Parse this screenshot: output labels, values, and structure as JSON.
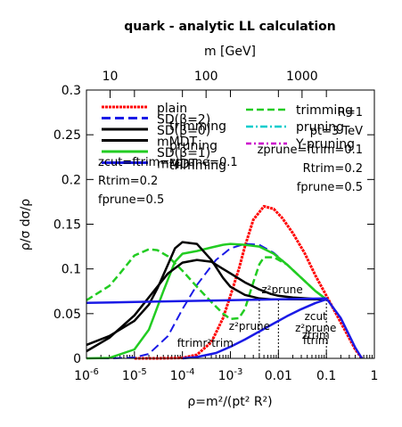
{
  "chart_data": {
    "type": "line",
    "title": "quark - analytic LL calculation",
    "top_axis_label": "m [GeV]",
    "top_ticks": [
      "10",
      "100",
      "1000"
    ],
    "top_tick_rho": [
      3.11e-06,
      0.000311,
      0.0311
    ],
    "xlabel": "ρ=m²/(pt² R²)",
    "ylabel": "ρ/σ dσ/ρ",
    "x_scale": "log",
    "xlim": [
      1e-06,
      1
    ],
    "ylim": [
      0,
      0.3
    ],
    "x_ticks": [
      "10-6",
      "10-5",
      "10-4",
      "10-3",
      "0.01",
      "0.1",
      "1"
    ],
    "y_ticks": [
      "0",
      "0.05",
      "0.1",
      "0.15",
      "0.2",
      "0.25",
      "0.3"
    ],
    "legend_position": "top",
    "legend_left": [
      {
        "label": "plain",
        "color": "#ff0000",
        "dash": "3,1"
      },
      {
        "label": "SD(β=2)",
        "color": "#1a1ae6",
        "dash": "10,5"
      },
      {
        "label": "SD(β=0)",
        "color": "#000000",
        "dash": ""
      },
      {
        "label": "mMDT",
        "color": "#000000",
        "dash": ""
      },
      {
        "label": "SD(β=1)",
        "color": "#22cc22",
        "dash": ""
      },
      {
        "label": "mMDT",
        "color": "#1a1ae6",
        "dash": ""
      }
    ],
    "legend_left_extra": [
      "trimming",
      "pruning",
      "trimming"
    ],
    "legend_right": [
      {
        "label": "trimming",
        "color": "#22cc22",
        "dash": "8,4"
      },
      {
        "label": "pruning",
        "color": "#00cccc",
        "dash": "8,3,2,3"
      },
      {
        "label": "Y-pruning",
        "color": "#cc00cc",
        "dash": "6,3,2,3"
      }
    ],
    "params_left": [
      "zcut=ftrim=zprune=0.1",
      "Rtrim=0.2",
      "fprune=0.5"
    ],
    "params_right": [
      "R=1",
      "pt=3 TeV",
      "zprune=ftrim=0.1",
      "Rtrim=0.2",
      "fprune=0.5"
    ],
    "series": [
      {
        "name": "plain",
        "color": "#ff0000",
        "dash": "3,1",
        "width": 3,
        "x": [
          1e-05,
          3e-05,
          0.0001,
          0.0002,
          0.0004,
          0.0007,
          0.001,
          0.0015,
          0.002,
          0.003,
          0.005,
          0.008,
          0.012,
          0.02,
          0.035,
          0.06,
          0.1,
          0.2,
          0.4,
          0.55
        ],
        "y": [
          0,
          0,
          0.0005,
          0.004,
          0.018,
          0.045,
          0.07,
          0.1,
          0.125,
          0.155,
          0.17,
          0.167,
          0.157,
          0.14,
          0.118,
          0.092,
          0.07,
          0.04,
          0.01,
          0
        ]
      },
      {
        "name": "SD(β=2)",
        "color": "#1a1ae6",
        "dash": "10,5",
        "width": 2,
        "x": [
          1e-06,
          3e-06,
          1e-05,
          2e-05,
          5e-05,
          0.0001,
          0.0002,
          0.0005,
          0.001,
          0.002,
          0.004,
          0.008,
          0.015,
          0.03,
          0.06,
          0.1
        ],
        "y": [
          0,
          0,
          0.001,
          0.005,
          0.025,
          0.055,
          0.082,
          0.11,
          0.123,
          0.128,
          0.127,
          0.118,
          0.105,
          0.09,
          0.075,
          0.066
        ]
      },
      {
        "name": "SD(β=1)",
        "color": "#22cc22",
        "dash": "",
        "width": 2.5,
        "x": [
          1e-06,
          3e-06,
          1e-05,
          2e-05,
          4e-05,
          7e-05,
          0.0001,
          0.0002,
          0.0004,
          0.0007,
          0.001,
          0.002,
          0.004,
          0.008,
          0.015,
          0.03,
          0.06,
          0.1
        ],
        "y": [
          0,
          0.0005,
          0.01,
          0.032,
          0.075,
          0.108,
          0.117,
          0.12,
          0.124,
          0.127,
          0.128,
          0.127,
          0.125,
          0.117,
          0.105,
          0.09,
          0.075,
          0.066
        ]
      },
      {
        "name": "trimming",
        "color": "#22cc22",
        "dash": "8,4",
        "width": 2.5,
        "x": [
          1e-06,
          3e-06,
          5e-06,
          1e-05,
          2e-05,
          3e-05,
          5e-05,
          0.0001,
          0.0002,
          0.0004,
          0.0007,
          0.001,
          0.0015,
          0.002,
          0.003,
          0.004,
          0.005,
          0.008,
          0.015,
          0.03,
          0.06,
          0.1
        ],
        "y": [
          0.065,
          0.081,
          0.095,
          0.115,
          0.122,
          0.121,
          0.114,
          0.098,
          0.08,
          0.063,
          0.05,
          0.044,
          0.045,
          0.055,
          0.085,
          0.105,
          0.113,
          0.113,
          0.105,
          0.09,
          0.075,
          0.066
        ]
      },
      {
        "name": "SD(β=0) / mMDT",
        "color": "#000000",
        "dash": "",
        "width": 2.5,
        "x": [
          1e-06,
          3e-06,
          1e-05,
          3e-05,
          5e-05,
          0.0001,
          0.0002,
          0.0004,
          0.0007,
          0.001,
          0.002,
          0.004,
          0.007,
          0.01,
          0.02,
          0.04,
          0.07,
          0.1
        ],
        "y": [
          0.008,
          0.023,
          0.048,
          0.08,
          0.095,
          0.107,
          0.11,
          0.108,
          0.1,
          0.095,
          0.085,
          0.077,
          0.072,
          0.07,
          0.068,
          0.067,
          0.066,
          0.066
        ]
      },
      {
        "name": "pruning",
        "color": "#000000",
        "dash": "",
        "width": 2.5,
        "x": [
          1e-06,
          3e-06,
          1e-05,
          2e-05,
          3e-05,
          5e-05,
          7e-05,
          0.0001,
          0.0002,
          0.0004,
          0.0007,
          0.001,
          0.002,
          0.004,
          0.007,
          0.01,
          0.03,
          0.1
        ],
        "y": [
          0.015,
          0.025,
          0.042,
          0.06,
          0.078,
          0.105,
          0.123,
          0.13,
          0.128,
          0.11,
          0.09,
          0.08,
          0.071,
          0.067,
          0.066,
          0.066,
          0.066,
          0.066
        ]
      },
      {
        "name": "Y-pruning",
        "color": "#cc00cc",
        "dash": "6,3,2,3",
        "width": 1.5,
        "x": [
          1e-06,
          1e-05,
          0.0001,
          0.001,
          0.01,
          0.1,
          0.2,
          0.4,
          0.55
        ],
        "y": [
          0.062,
          0.063,
          0.064,
          0.065,
          0.066,
          0.067,
          0.045,
          0.012,
          0
        ]
      },
      {
        "name": "mMDT (blue)",
        "color": "#1a1ae6",
        "dash": "",
        "width": 2.5,
        "x": [
          1e-06,
          1e-05,
          0.0001,
          0.001,
          0.01,
          0.1,
          0.2,
          0.4,
          0.55
        ],
        "y": [
          0.062,
          0.063,
          0.064,
          0.065,
          0.066,
          0.067,
          0.045,
          0.012,
          0
        ]
      },
      {
        "name": "trimming (lower)",
        "color": "#1a1ae6",
        "dash": "",
        "width": 2.5,
        "x": [
          0.0001,
          0.0002,
          0.0005,
          0.001,
          0.002,
          0.004,
          0.008,
          0.015,
          0.03,
          0.06,
          0.1
        ],
        "y": [
          0,
          0.0015,
          0.006,
          0.013,
          0.021,
          0.03,
          0.039,
          0.047,
          0.055,
          0.062,
          0.066
        ]
      }
    ],
    "vlines": [
      {
        "x": 0.004,
        "ymax": 0.066
      },
      {
        "x": 0.01,
        "ymax": 0.066
      },
      {
        "x": 0.1,
        "ymax": 0.066
      }
    ],
    "annotations": [
      {
        "text": "z²prune",
        "x": 0.012,
        "y": 0.073
      },
      {
        "text": "z²prune",
        "x": 0.0025,
        "y": 0.032
      },
      {
        "text": "zcut",
        "x": 0.06,
        "y": 0.043
      },
      {
        "text": "z²prune",
        "x": 0.06,
        "y": 0.03
      },
      {
        "text": "ftrimr²trim",
        "x": 0.0003,
        "y": 0.013
      },
      {
        "text": "ftrim",
        "x": 0.06,
        "y": 0.016
      },
      {
        "text": "ztrim",
        "x": 0.06,
        "y": 0.022
      }
    ]
  }
}
